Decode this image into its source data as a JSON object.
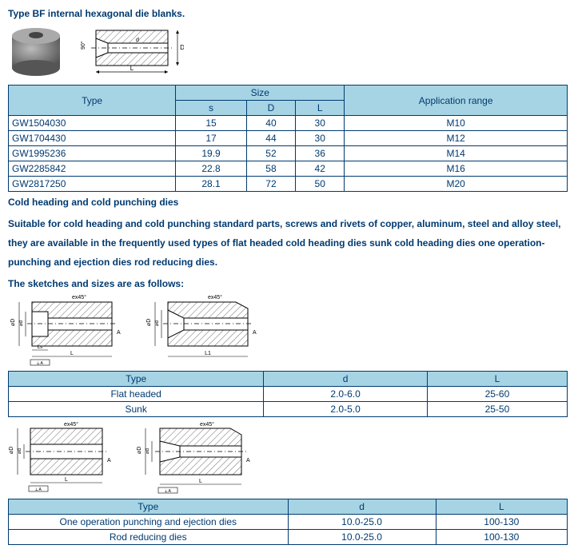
{
  "section1": {
    "title": "Type BF internal hexagonal die blanks.",
    "table": {
      "headers": {
        "type": "Type",
        "size": "Size",
        "s": "s",
        "d": "D",
        "l": "L",
        "app": "Application range"
      },
      "rows": [
        {
          "type": "GW1504030",
          "s": "15",
          "d": "40",
          "l": "30",
          "app": "M10"
        },
        {
          "type": "GW1704430",
          "s": "17",
          "d": "44",
          "l": "30",
          "app": "M12"
        },
        {
          "type": "GW1995236",
          "s": "19.9",
          "d": "52",
          "l": "36",
          "app": "M14"
        },
        {
          "type": "GW2285842",
          "s": "22.8",
          "d": "58",
          "l": "42",
          "app": "M16"
        },
        {
          "type": "GW2817250",
          "s": "28.1",
          "d": "72",
          "l": "50",
          "app": "M20"
        }
      ]
    }
  },
  "section2": {
    "heading": "Cold heading and cold punching dies",
    "desc": "Suitable for cold heading and cold punching standard parts, screws and rivets of copper, aluminum, steel and alloy steel, they are available in the frequently used types of flat headed cold heading dies sunk cold heading dies one operation-punching and ejection dies rod reducing dies.",
    "sketches_line": "The sketches and sizes are as follows:"
  },
  "table2": {
    "headers": {
      "type": "Type",
      "d": "d",
      "l": "L"
    },
    "rows": [
      {
        "type": "Flat headed",
        "d": "2.0-6.0",
        "l": "25-60"
      },
      {
        "type": "Sunk",
        "d": "2.0-5.0",
        "l": "25-50"
      }
    ]
  },
  "table3": {
    "headers": {
      "type": "Type",
      "d": "d",
      "l": "L"
    },
    "rows": [
      {
        "type": "One operation punching and ejection dies",
        "d": "10.0-25.0",
        "l": "100-130"
      },
      {
        "type": "Rod reducing dies",
        "d": "10.0-25.0",
        "l": "100-130"
      }
    ]
  },
  "colors": {
    "header_bg": "#a7d4e4",
    "border": "#003a70",
    "text": "#003a70",
    "hatch": "#6b6b6b",
    "steel": "#777777"
  }
}
